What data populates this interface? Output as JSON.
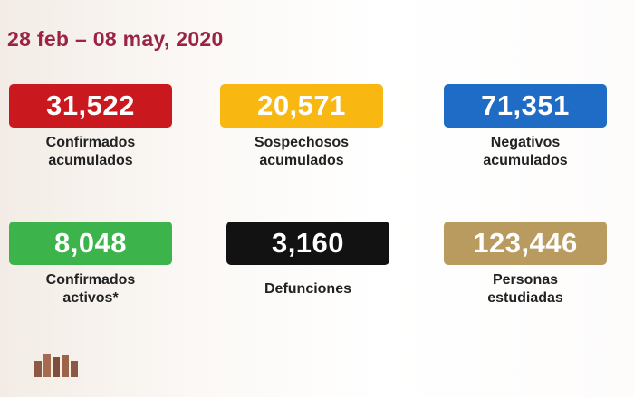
{
  "header": {
    "title": "28 feb – 08 may, 2020"
  },
  "cards": [
    {
      "value": "31,522",
      "label_lines": [
        "Confirmados",
        "acumulados"
      ],
      "color": "#c9191f"
    },
    {
      "value": "20,571",
      "label_lines": [
        "Sospechosos",
        "acumulados"
      ],
      "color": "#f8b811"
    },
    {
      "value": "71,351",
      "label_lines": [
        "Negativos",
        "acumulados"
      ],
      "color": "#1f6cc6"
    },
    {
      "value": "8,048",
      "label_lines": [
        "Confirmados",
        "activos*"
      ],
      "color": "#3db34b"
    },
    {
      "value": "3,160",
      "label_lines": [
        "Defunciones"
      ],
      "color": "#121212"
    },
    {
      "value": "123,446",
      "label_lines": [
        "Personas",
        "estudiadas"
      ],
      "color": "#b99b60"
    }
  ]
}
